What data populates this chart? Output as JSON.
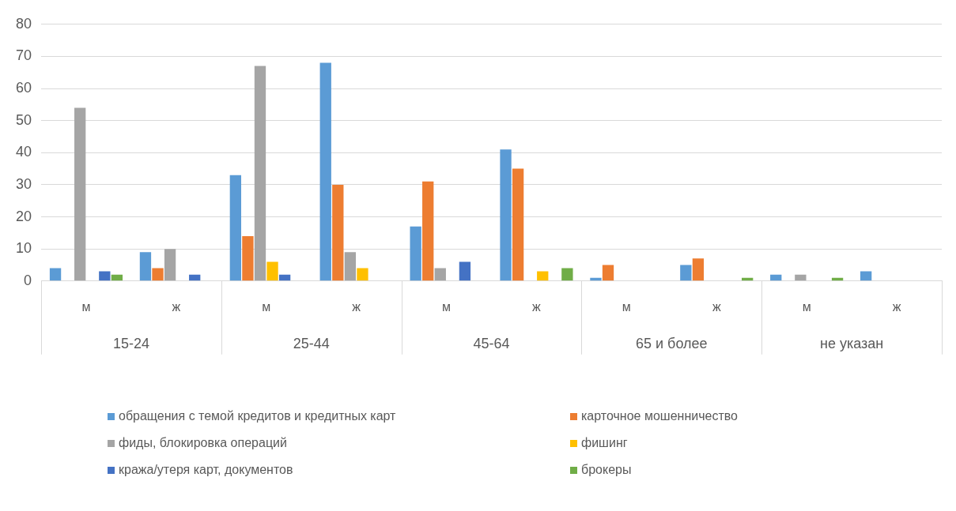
{
  "chart_data": {
    "type": "bar",
    "categories": [
      "м",
      "ж",
      "м",
      "ж",
      "м",
      "ж",
      "м",
      "ж",
      "м",
      "ж"
    ],
    "annotations": [
      "15-24",
      "25-44",
      "45-64",
      "65 и более",
      "не указан"
    ],
    "series": [
      {
        "name": "обращения с темой кредитов и кредитных карт",
        "color": "#5b9bd5",
        "values": [
          4,
          9,
          33,
          68,
          17,
          41,
          1,
          5,
          2,
          3
        ]
      },
      {
        "name": "карточное мошенничество",
        "color": "#ed7d31",
        "values": [
          0,
          4,
          14,
          30,
          31,
          35,
          5,
          7,
          0,
          0
        ]
      },
      {
        "name": "фиды, блокировка операций",
        "color": "#a5a5a5",
        "values": [
          54,
          10,
          67,
          9,
          4,
          0,
          0,
          0,
          2,
          0
        ]
      },
      {
        "name": "фишинг",
        "color": "#ffc000",
        "values": [
          0,
          0,
          6,
          4,
          0,
          3,
          0,
          0,
          0,
          0
        ]
      },
      {
        "name": "кража/утеря карт, документов",
        "color": "#4472c4",
        "values": [
          3,
          2,
          2,
          0,
          6,
          0,
          0,
          0,
          0,
          0
        ]
      },
      {
        "name": "брокеры",
        "color": "#70ad47",
        "values": [
          2,
          0,
          0,
          0,
          0,
          4,
          0,
          1,
          1,
          0
        ]
      }
    ],
    "ylim": [
      0,
      80
    ],
    "yticks": [
      0,
      10,
      20,
      30,
      40,
      50,
      60,
      70,
      80
    ],
    "grid": "y",
    "legend": "bottom"
  }
}
